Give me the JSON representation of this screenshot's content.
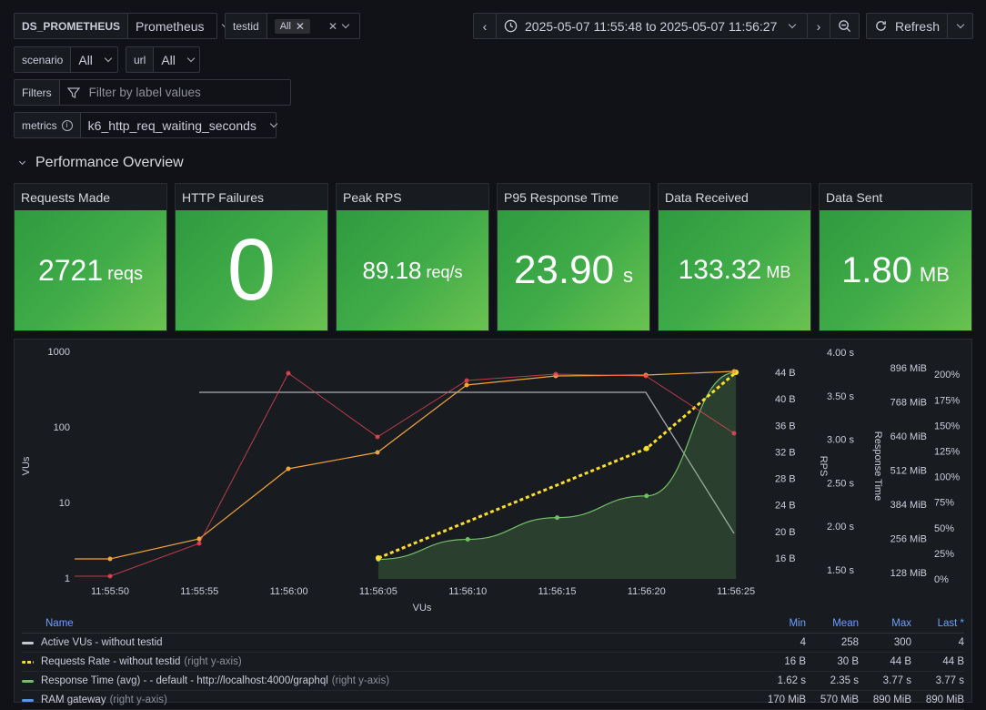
{
  "variables": {
    "datasource": {
      "label": "DS_PROMETHEUS",
      "value": "Prometheus"
    },
    "testid": {
      "label": "testid",
      "chip": "All"
    },
    "scenario": {
      "label": "scenario",
      "value": "All"
    },
    "url": {
      "label": "url",
      "value": "All"
    },
    "filters": {
      "label": "Filters",
      "placeholder": "Filter by label values"
    },
    "metrics": {
      "label": "metrics",
      "value": "k6_http_req_waiting_seconds"
    }
  },
  "timepicker": {
    "range": "2025-05-07 11:55:48 to 2025-05-07 11:56:27",
    "refresh_label": "Refresh"
  },
  "row": {
    "title": "Performance Overview"
  },
  "stats": [
    {
      "title": "Requests Made",
      "value": "2721",
      "unit": "reqs"
    },
    {
      "title": "HTTP Failures",
      "value": "0",
      "unit": ""
    },
    {
      "title": "Peak RPS",
      "value": "89.18",
      "unit": "req/s"
    },
    {
      "title": "P95 Response Time",
      "value": "23.90",
      "unit": "s"
    },
    {
      "title": "Data Received",
      "value": "133.32",
      "unit": "MB"
    },
    {
      "title": "Data Sent",
      "value": "1.80",
      "unit": "MB"
    }
  ],
  "colors": {
    "green": "#73bf69",
    "yellow": "#fade2a",
    "red": "#f2495c",
    "orange": "#f2a33a",
    "gray": "#c7c9ce"
  },
  "chart_data": {
    "type": "line",
    "x": [
      "11:55:50",
      "11:55:55",
      "11:56:00",
      "11:56:05",
      "11:56:10",
      "11:56:15",
      "11:56:20",
      "11:56:25"
    ],
    "xlabel": "VUs",
    "axes": {
      "left": {
        "label": "VUs",
        "scale": "log",
        "ticks": [
          "1",
          "10",
          "100",
          "1000"
        ]
      },
      "right1": {
        "label": "",
        "ticks": [
          "16 B",
          "20 B",
          "24 B",
          "28 B",
          "32 B",
          "36 B",
          "40 B",
          "44 B"
        ]
      },
      "right2": {
        "label": "RPS",
        "ticks": [
          "1.50 s",
          "2.00 s",
          "2.50 s",
          "3.00 s",
          "3.50 s",
          "4.00 s"
        ]
      },
      "right3": {
        "label": "Response Time",
        "ticks": [
          "128 MiB",
          "256 MiB",
          "384 MiB",
          "512 MiB",
          "640 MiB",
          "768 MiB",
          "896 MiB"
        ]
      },
      "right4": {
        "label": "",
        "ticks": [
          "0%",
          "25%",
          "50%",
          "75%",
          "100%",
          "125%",
          "150%",
          "175%",
          "200%"
        ]
      }
    },
    "series": [
      {
        "name": "Active VUs - without testid",
        "points": [
          [
            0.4,
            4
          ],
          [
            3.6,
            300
          ],
          [
            5.9,
            300
          ],
          [
            7.0,
            4
          ]
        ]
      },
      {
        "name": "Requests Rate - without testid",
        "points": [
          [
            3.0,
            16
          ],
          [
            4.0,
            21.5
          ],
          [
            5.0,
            27
          ],
          [
            6.0,
            32.5
          ],
          [
            7.0,
            44
          ]
        ]
      },
      {
        "name": "Response Time (avg) - - default - http://localhost:4000/graphql",
        "points": [
          [
            3.0,
            1.62
          ],
          [
            4.0,
            1.85
          ],
          [
            5.0,
            2.1
          ],
          [
            6.0,
            2.35
          ],
          [
            7.0,
            3.77
          ]
        ]
      },
      {
        "name": "orange",
        "points": [
          [
            -0.1,
            1.9
          ],
          [
            0.2,
            1.9
          ],
          [
            1.2,
            3.4
          ],
          [
            2.2,
            27
          ],
          [
            3.2,
            47
          ],
          [
            4.2,
            380
          ],
          [
            5.2,
            490
          ],
          [
            6.2,
            510
          ],
          [
            7.2,
            560
          ]
        ]
      },
      {
        "name": "red",
        "points": [
          [
            -0.1,
            1.1
          ],
          [
            0.2,
            1.1
          ],
          [
            1.2,
            3.0
          ],
          [
            2.2,
            580
          ],
          [
            3.2,
            70
          ],
          [
            4.2,
            430
          ],
          [
            5.2,
            530
          ],
          [
            6.2,
            510
          ],
          [
            7.2,
            75
          ]
        ]
      }
    ]
  },
  "legend": {
    "headers": {
      "name": "Name",
      "min": "Min",
      "mean": "Mean",
      "max": "Max",
      "last": "Last *"
    },
    "rows": [
      {
        "name": "Active VUs - without testid",
        "suffix": "",
        "min": "4",
        "mean": "258",
        "max": "300",
        "last": "4"
      },
      {
        "name": "Requests Rate - without testid",
        "suffix": "(right y-axis)",
        "min": "16 B",
        "mean": "30 B",
        "max": "44 B",
        "last": "44 B"
      },
      {
        "name": "Response Time (avg) - - default - http://localhost:4000/graphql",
        "suffix": "(right y-axis)",
        "min": "1.62 s",
        "mean": "2.35 s",
        "max": "3.77 s",
        "last": "3.77 s"
      },
      {
        "name": "RAM gateway",
        "suffix": "(right y-axis)",
        "min": "170 MiB",
        "mean": "570 MiB",
        "max": "890 MiB",
        "last": "890 MiB"
      }
    ]
  }
}
